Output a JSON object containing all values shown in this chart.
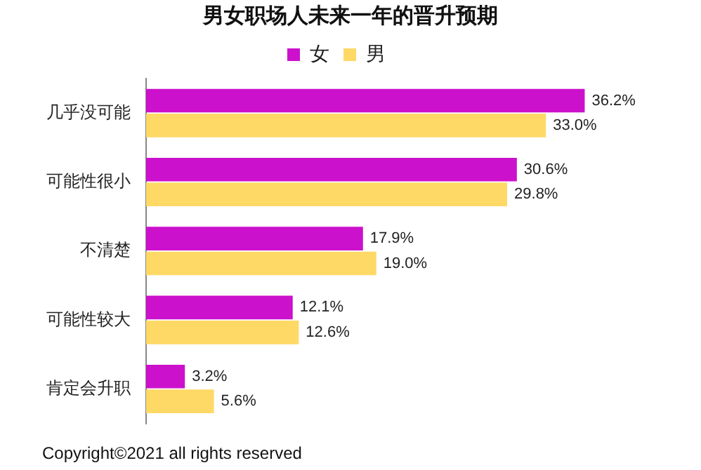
{
  "chart_data": {
    "type": "bar",
    "orientation": "horizontal",
    "title": "男女职场人未来一年的晋升预期",
    "categories": [
      "几乎没可能",
      "可能性很小",
      "不清楚",
      "可能性较大",
      "肯定会升职"
    ],
    "series": [
      {
        "name": "女",
        "color": "#cc11cc",
        "values": [
          36.2,
          30.6,
          17.9,
          12.1,
          3.2
        ],
        "value_labels": [
          "36.2%",
          "30.6%",
          "17.9%",
          "12.1%",
          "3.2%"
        ]
      },
      {
        "name": "男",
        "color": "#ffd966",
        "values": [
          33.0,
          29.8,
          19.0,
          12.6,
          5.6
        ],
        "value_labels": [
          "33.0%",
          "29.8%",
          "19.0%",
          "12.6%",
          "5.6%"
        ]
      }
    ],
    "legend": "top",
    "grid": false,
    "tick_labels": "y",
    "annotations": [
      "Copyright©2021 all rights reserved"
    ]
  }
}
